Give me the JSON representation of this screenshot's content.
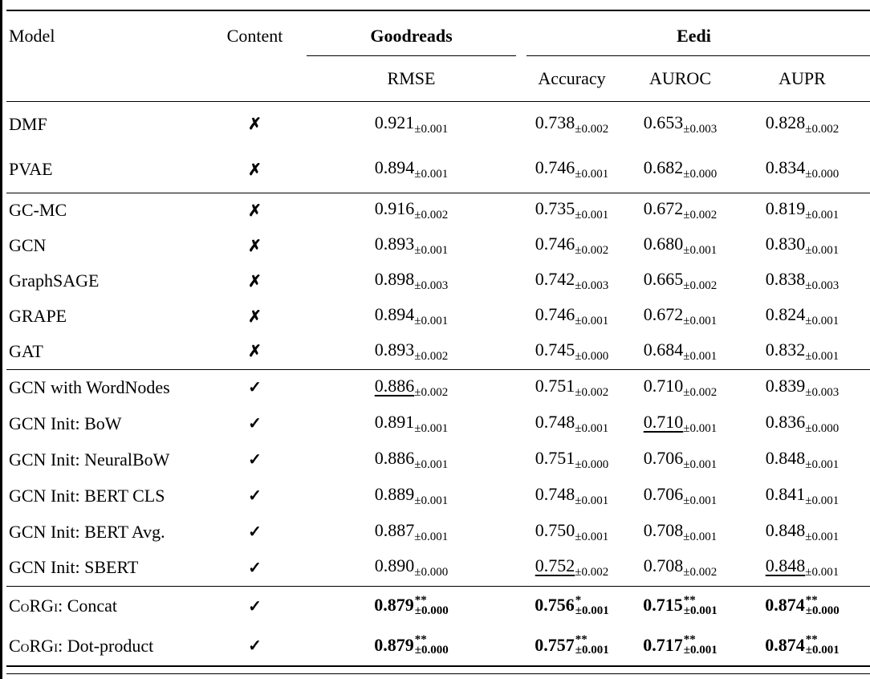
{
  "colors": {
    "text": "#000000",
    "background": "#ffffff"
  },
  "table": {
    "headers": {
      "model": "Model",
      "content": "Content",
      "group1": "Goodreads",
      "group2": "Eedi",
      "metrics": [
        "RMSE",
        "Accuracy",
        "AUROC",
        "AUPR"
      ]
    },
    "symbols": {
      "has_content": "✓",
      "no_content": "✗"
    },
    "sections": [
      {
        "rows": [
          {
            "model": "DMF",
            "content": false,
            "cells": [
              {
                "v": "0.921",
                "pm": "±0.001"
              },
              {
                "v": "0.738",
                "pm": "±0.002"
              },
              {
                "v": "0.653",
                "pm": "±0.003"
              },
              {
                "v": "0.828",
                "pm": "±0.002"
              }
            ]
          },
          {
            "model": "PVAE",
            "content": false,
            "cells": [
              {
                "v": "0.894",
                "pm": "±0.001"
              },
              {
                "v": "0.746",
                "pm": "±0.001"
              },
              {
                "v": "0.682",
                "pm": "±0.000"
              },
              {
                "v": "0.834",
                "pm": "±0.000"
              }
            ]
          }
        ]
      },
      {
        "rows": [
          {
            "model": "GC-MC",
            "content": false,
            "cells": [
              {
                "v": "0.916",
                "pm": "±0.002"
              },
              {
                "v": "0.735",
                "pm": "±0.001"
              },
              {
                "v": "0.672",
                "pm": "±0.002"
              },
              {
                "v": "0.819",
                "pm": "±0.001"
              }
            ]
          },
          {
            "model": "GCN",
            "content": false,
            "cells": [
              {
                "v": "0.893",
                "pm": "±0.001"
              },
              {
                "v": "0.746",
                "pm": "±0.002"
              },
              {
                "v": "0.680",
                "pm": "±0.001"
              },
              {
                "v": "0.830",
                "pm": "±0.001"
              }
            ]
          },
          {
            "model": "GraphSAGE",
            "content": false,
            "cells": [
              {
                "v": "0.898",
                "pm": "±0.003"
              },
              {
                "v": "0.742",
                "pm": "±0.003"
              },
              {
                "v": "0.665",
                "pm": "±0.002"
              },
              {
                "v": "0.838",
                "pm": "±0.003"
              }
            ]
          },
          {
            "model": "GRAPE",
            "content": false,
            "cells": [
              {
                "v": "0.894",
                "pm": "±0.001"
              },
              {
                "v": "0.746",
                "pm": "±0.001"
              },
              {
                "v": "0.672",
                "pm": "±0.001"
              },
              {
                "v": "0.824",
                "pm": "±0.001"
              }
            ]
          },
          {
            "model": "GAT",
            "content": false,
            "cells": [
              {
                "v": "0.893",
                "pm": "±0.002"
              },
              {
                "v": "0.745",
                "pm": "±0.000"
              },
              {
                "v": "0.684",
                "pm": "±0.001"
              },
              {
                "v": "0.832",
                "pm": "±0.001"
              }
            ]
          }
        ]
      },
      {
        "rows": [
          {
            "model": "GCN with WordNodes",
            "content": true,
            "cells": [
              {
                "v": "0.886",
                "pm": "±0.002",
                "u": true
              },
              {
                "v": "0.751",
                "pm": "±0.002"
              },
              {
                "v": "0.710",
                "pm": "±0.002"
              },
              {
                "v": "0.839",
                "pm": "±0.003"
              }
            ]
          },
          {
            "model": "GCN Init: BoW",
            "content": true,
            "cells": [
              {
                "v": "0.891",
                "pm": "±0.001"
              },
              {
                "v": "0.748",
                "pm": "±0.001"
              },
              {
                "v": "0.710",
                "pm": "±0.001",
                "u": true
              },
              {
                "v": "0.836",
                "pm": "±0.000"
              }
            ]
          },
          {
            "model": "GCN Init: NeuralBoW",
            "content": true,
            "cells": [
              {
                "v": "0.886",
                "pm": "±0.001"
              },
              {
                "v": "0.751",
                "pm": "±0.000"
              },
              {
                "v": "0.706",
                "pm": "±0.001"
              },
              {
                "v": "0.848",
                "pm": "±0.001"
              }
            ]
          },
          {
            "model": "GCN Init: BERT CLS",
            "content": true,
            "cells": [
              {
                "v": "0.889",
                "pm": "±0.001"
              },
              {
                "v": "0.748",
                "pm": "±0.001"
              },
              {
                "v": "0.706",
                "pm": "±0.001"
              },
              {
                "v": "0.841",
                "pm": "±0.001"
              }
            ]
          },
          {
            "model": "GCN Init: BERT Avg.",
            "content": true,
            "cells": [
              {
                "v": "0.887",
                "pm": "±0.001"
              },
              {
                "v": "0.750",
                "pm": "±0.001"
              },
              {
                "v": "0.708",
                "pm": "±0.001"
              },
              {
                "v": "0.848",
                "pm": "±0.001"
              }
            ]
          },
          {
            "model": "GCN Init: SBERT",
            "content": true,
            "cells": [
              {
                "v": "0.890",
                "pm": "±0.000"
              },
              {
                "v": "0.752",
                "pm": "±0.002",
                "u": true
              },
              {
                "v": "0.708",
                "pm": "±0.002"
              },
              {
                "v": "0.848",
                "pm": "±0.001",
                "u": true
              }
            ]
          }
        ]
      },
      {
        "rows": [
          {
            "sc": "CoRGi",
            "rest": ": Concat",
            "content": true,
            "cells": [
              {
                "v": "0.879",
                "pm": "±0.000",
                "b": true,
                "sup": "**"
              },
              {
                "v": "0.756",
                "pm": "±0.001",
                "b": true,
                "sup": "*"
              },
              {
                "v": "0.715",
                "pm": "±0.001",
                "b": true,
                "sup": "**"
              },
              {
                "v": "0.874",
                "pm": "±0.000",
                "b": true,
                "sup": "**"
              }
            ]
          },
          {
            "sc": "CoRGi",
            "rest": ": Dot-product",
            "content": true,
            "cells": [
              {
                "v": "0.879",
                "pm": "±0.000",
                "b": true,
                "sup": "**"
              },
              {
                "v": "0.757",
                "pm": "±0.001",
                "b": true,
                "sup": "**"
              },
              {
                "v": "0.717",
                "pm": "±0.001",
                "b": true,
                "sup": "**"
              },
              {
                "v": "0.874",
                "pm": "±0.001",
                "b": true,
                "sup": "**"
              }
            ]
          }
        ]
      }
    ]
  }
}
